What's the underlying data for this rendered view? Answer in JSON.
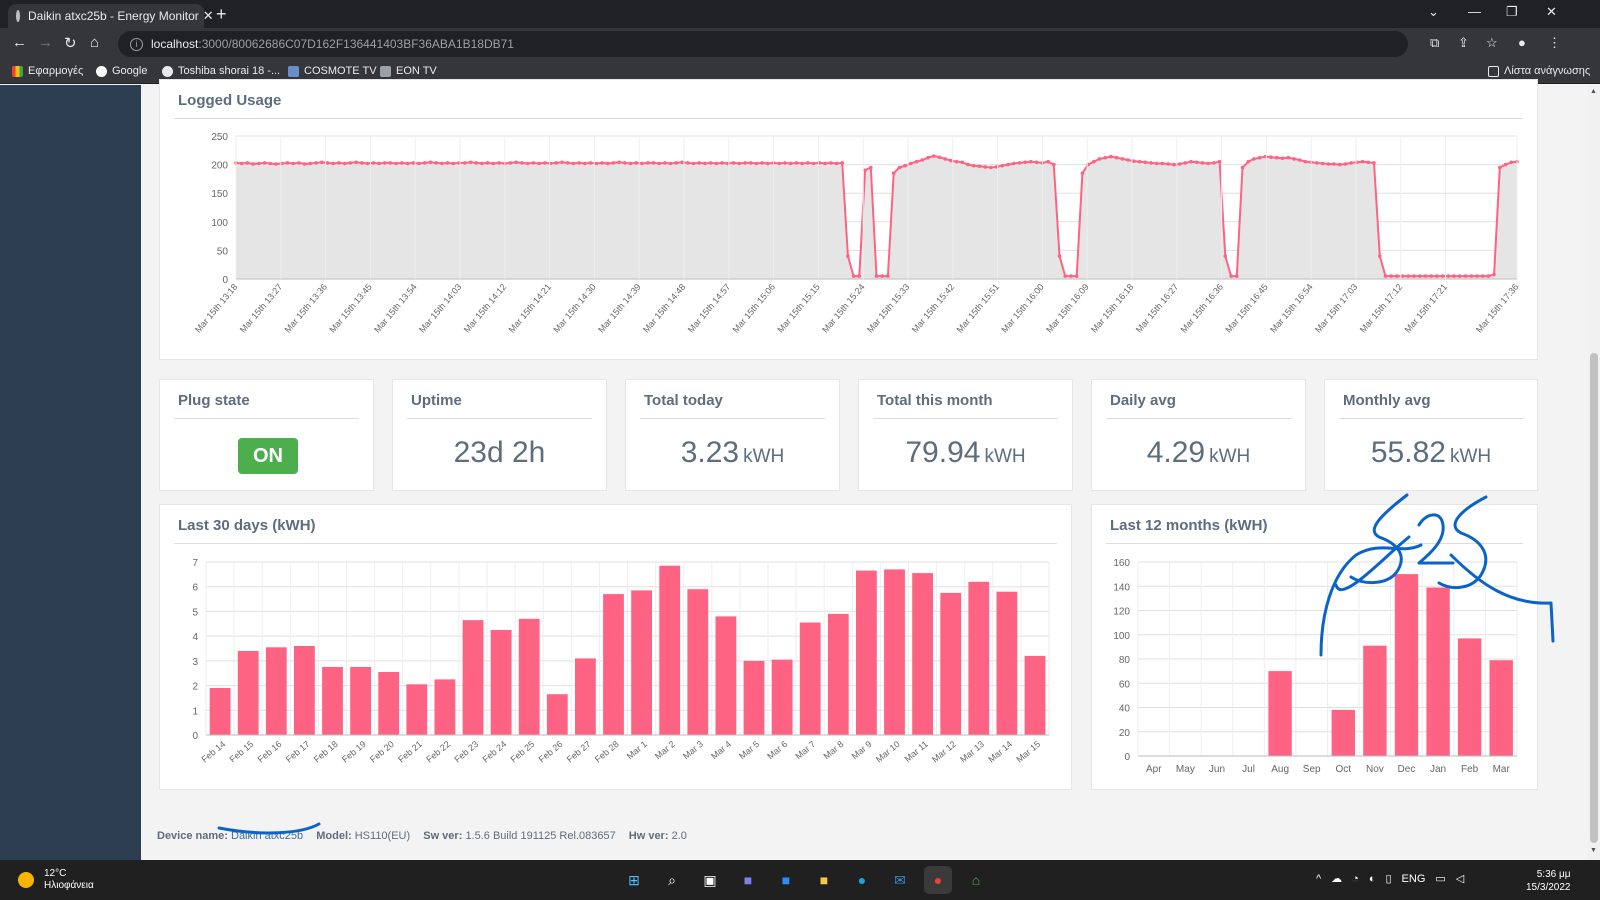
{
  "browser": {
    "tab_title": "Daikin atxc25b - Energy Monitor",
    "new_tab": "+",
    "url_host": "localhost",
    "url_path": ":3000/80062686C07D162F136441403BF36ABA1B18DB71",
    "bookmarks": [
      "Εφαρμογές",
      "Google",
      "Toshiba shorai 18 -...",
      "COSMOTE TV",
      "EON TV"
    ],
    "reading_list": "Λίστα ανάγνωσης"
  },
  "logged_usage": {
    "title": "Logged Usage",
    "chart_data": {
      "type": "area",
      "ylim": [
        0,
        250
      ],
      "yticks": [
        0,
        50,
        100,
        150,
        200,
        250
      ],
      "x_ticks": [
        "Mar 15th 13:18",
        "Mar 15th 13:27",
        "Mar 15th 13:36",
        "Mar 15th 13:45",
        "Mar 15th 13:54",
        "Mar 15th 14:03",
        "Mar 15th 14:12",
        "Mar 15th 14:21",
        "Mar 15th 14:30",
        "Mar 15th 14:39",
        "Mar 15th 14:48",
        "Mar 15th 14:57",
        "Mar 15th 15:06",
        "Mar 15th 15:15",
        "Mar 15th 15:24",
        "Mar 15th 15:33",
        "Mar 15th 15:42",
        "Mar 15th 15:51",
        "Mar 15th 16:00",
        "Mar 15th 16:09",
        "Mar 15th 16:18",
        "Mar 15th 16:27",
        "Mar 15th 16:36",
        "Mar 15th 16:45",
        "Mar 15th 16:54",
        "Mar 15th 17:03",
        "Mar 15th 17:12",
        "Mar 15th 17:21",
        "Mar 15th 17:36"
      ],
      "series": [
        {
          "values": [
            203,
            202,
            203,
            201,
            202,
            203,
            202,
            201,
            202,
            203,
            202,
            203,
            201,
            202,
            203,
            204,
            203,
            202,
            203,
            202,
            203,
            204,
            203,
            202,
            203,
            202,
            203,
            203,
            202,
            203,
            202,
            203,
            202,
            203,
            204,
            203,
            202,
            203,
            202,
            203,
            203,
            204,
            203,
            202,
            203,
            202,
            203,
            202,
            203,
            204,
            203,
            202,
            203,
            202,
            203,
            202,
            203,
            204,
            203,
            202,
            203,
            202,
            203,
            202,
            203,
            202,
            203,
            204,
            203,
            202,
            203,
            202,
            203,
            203,
            202,
            203,
            202,
            203,
            204,
            203,
            202,
            203,
            202,
            203,
            202,
            203,
            202,
            203,
            202,
            203,
            203,
            202,
            203,
            202,
            203,
            202,
            203,
            202,
            203,
            202,
            203,
            202,
            203,
            202,
            203,
            202,
            203,
            40,
            5,
            5,
            190,
            195,
            5,
            5,
            5,
            185,
            195,
            198,
            202,
            205,
            208,
            212,
            215,
            213,
            210,
            207,
            205,
            204,
            200,
            198,
            197,
            196,
            195,
            196,
            198,
            200,
            202,
            203,
            204,
            205,
            204,
            203,
            205,
            200,
            40,
            5,
            5,
            5,
            185,
            200,
            205,
            210,
            212,
            214,
            212,
            210,
            208,
            206,
            205,
            204,
            203,
            202,
            202,
            201,
            200,
            201,
            203,
            205,
            204,
            203,
            202,
            203,
            205,
            40,
            5,
            5,
            195,
            205,
            210,
            212,
            214,
            213,
            212,
            211,
            212,
            210,
            208,
            205,
            204,
            203,
            202,
            201,
            201,
            200,
            201,
            203,
            204,
            205,
            204,
            203,
            40,
            5,
            5,
            5,
            5,
            5,
            5,
            5,
            5,
            5,
            5,
            5,
            5,
            5,
            5,
            5,
            5,
            5,
            5,
            5,
            8,
            195,
            200,
            204,
            205
          ]
        }
      ]
    }
  },
  "stats": {
    "plug_state": {
      "title": "Plug state",
      "value": "ON"
    },
    "uptime": {
      "title": "Uptime",
      "value": "23d 2h"
    },
    "total_today": {
      "title": "Total today",
      "value": "3.23",
      "unit": "kWH"
    },
    "total_month": {
      "title": "Total this month",
      "value": "79.94",
      "unit": "kWH"
    },
    "daily_avg": {
      "title": "Daily avg",
      "value": "4.29",
      "unit": "kWH"
    },
    "monthly_avg": {
      "title": "Monthly avg",
      "value": "55.82",
      "unit": "kWH"
    }
  },
  "last30": {
    "title": "Last 30 days (kWH)",
    "chart_data": {
      "type": "bar",
      "ylim": [
        0,
        7
      ],
      "yticks": [
        0,
        1,
        2,
        3,
        4,
        5,
        6,
        7
      ],
      "categories": [
        "Feb 14",
        "Feb 15",
        "Feb 16",
        "Feb 17",
        "Feb 18",
        "Feb 19",
        "Feb 20",
        "Feb 21",
        "Feb 22",
        "Feb 23",
        "Feb 24",
        "Feb 25",
        "Feb 26",
        "Feb 27",
        "Feb 28",
        "Mar 1",
        "Mar 2",
        "Mar 3",
        "Mar 4",
        "Mar 5",
        "Mar 6",
        "Mar 7",
        "Mar 8",
        "Mar 9",
        "Mar 10",
        "Mar 11",
        "Mar 12",
        "Mar 13",
        "Mar 14",
        "Mar 15"
      ],
      "values": [
        1.9,
        3.4,
        3.55,
        3.6,
        2.75,
        2.75,
        2.55,
        2.05,
        2.25,
        4.65,
        4.25,
        4.7,
        1.65,
        3.1,
        5.7,
        5.85,
        6.85,
        5.9,
        4.8,
        3.0,
        3.05,
        4.55,
        4.9,
        6.65,
        6.7,
        6.55,
        5.75,
        6.2,
        5.8,
        3.2
      ]
    }
  },
  "last12": {
    "title": "Last 12 months (kWH)",
    "chart_data": {
      "type": "bar",
      "ylim": [
        0,
        160
      ],
      "yticks": [
        0,
        20,
        40,
        60,
        80,
        100,
        120,
        140,
        160
      ],
      "categories": [
        "Apr",
        "May",
        "Jun",
        "Jul",
        "Aug",
        "Sep",
        "Oct",
        "Nov",
        "Dec",
        "Jan",
        "Feb",
        "Mar"
      ],
      "values": [
        0,
        0,
        0,
        0,
        70,
        0,
        38,
        91,
        150,
        139,
        97,
        79
      ]
    }
  },
  "device": {
    "name_label": "Device name:",
    "name": "Daikin atxc25b",
    "model_label": "Model:",
    "model": "HS110(EU)",
    "sw_label": "Sw ver:",
    "sw": "1.5.6 Build 191125 Rel.083657",
    "hw_label": "Hw ver:",
    "hw": "2.0"
  },
  "colors": {
    "bar": "#ff6384",
    "line": "#ff6384",
    "area_fill": "#e5e5e5",
    "on_badge": "#4cae4c",
    "sidebar": "#2c3e50",
    "annotation": "#0a64c8"
  },
  "taskbar": {
    "temp": "12°C",
    "weather": "Ηλιοφάνεια",
    "lang": "ENG",
    "time": "5:36 μμ",
    "date": "15/3/2022"
  }
}
